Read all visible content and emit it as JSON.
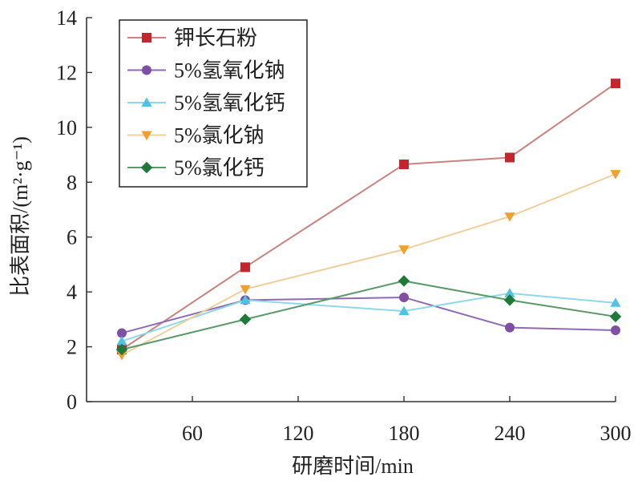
{
  "chart_data": {
    "type": "line",
    "title": "",
    "xlabel": "研磨时间/min",
    "ylabel": "比表面积/(m²·g⁻¹)",
    "x": [
      20,
      90,
      180,
      240,
      300
    ],
    "xlim": [
      0,
      300
    ],
    "ylim": [
      0,
      14
    ],
    "xticks": [
      60,
      120,
      180,
      240,
      300
    ],
    "yticks": [
      0,
      2,
      4,
      6,
      8,
      10,
      12,
      14
    ],
    "grid": false,
    "legend_position": "top-left",
    "series": [
      {
        "name": "钾长石粉",
        "color": "#c1272d",
        "line_color": "#c9837f",
        "marker": "square",
        "values": [
          1.9,
          4.9,
          8.65,
          8.9,
          11.6
        ]
      },
      {
        "name": "5%氢氧化钠",
        "color": "#7f4fa6",
        "line_color": "#8e6ab5",
        "marker": "circle",
        "values": [
          2.5,
          3.7,
          3.8,
          2.7,
          2.6
        ]
      },
      {
        "name": "5%氢氧化钙",
        "color": "#4fc3e0",
        "line_color": "#8fd8e8",
        "marker": "triangle-up",
        "values": [
          2.2,
          3.7,
          3.3,
          3.95,
          3.6
        ]
      },
      {
        "name": "5%氯化钠",
        "color": "#f0a030",
        "line_color": "#efcf9c",
        "marker": "triangle-down",
        "values": [
          1.7,
          4.1,
          5.55,
          6.75,
          8.3
        ]
      },
      {
        "name": "5%氯化钙",
        "color": "#1f7a3a",
        "line_color": "#5a9a6a",
        "marker": "diamond",
        "values": [
          1.9,
          3.0,
          4.4,
          3.7,
          3.1
        ]
      }
    ]
  }
}
